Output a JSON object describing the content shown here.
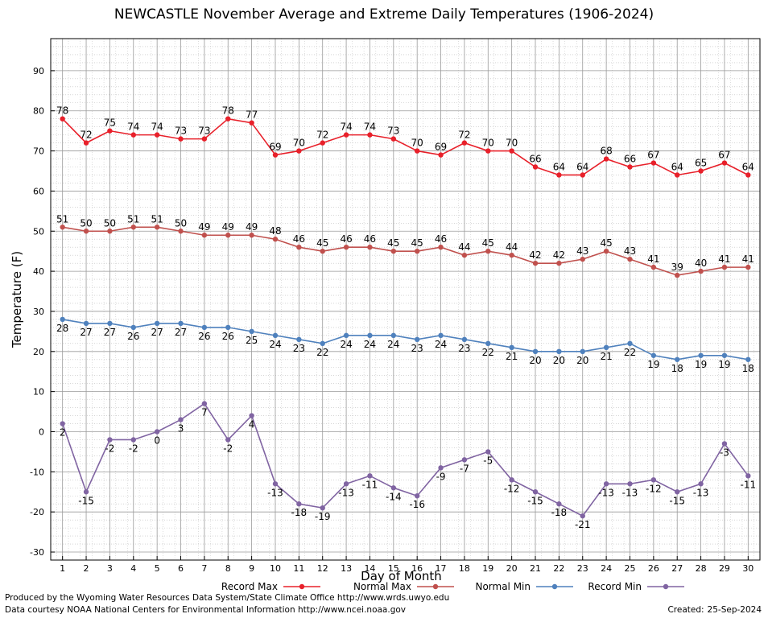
{
  "chart_data": {
    "type": "line",
    "title": "NEWCASTLE November Average and Extreme Daily Temperatures (1906-2024)",
    "xlabel": "Day of Month",
    "ylabel": "Temperature (F)",
    "x": [
      1,
      2,
      3,
      4,
      5,
      6,
      7,
      8,
      9,
      10,
      11,
      12,
      13,
      14,
      15,
      16,
      17,
      18,
      19,
      20,
      21,
      22,
      23,
      24,
      25,
      26,
      27,
      28,
      29,
      30
    ],
    "xlim": [
      0.5,
      30.5
    ],
    "ylim": [
      -32,
      98
    ],
    "yticks": [
      -30,
      -20,
      -10,
      0,
      10,
      20,
      30,
      40,
      50,
      60,
      70,
      80,
      90
    ],
    "grid": true,
    "legend_position": "bottom",
    "series": [
      {
        "name": "Record Max",
        "color": "#e8202a",
        "label_position": "above",
        "values": [
          78,
          72,
          75,
          74,
          74,
          73,
          73,
          78,
          77,
          69,
          70,
          72,
          74,
          74,
          73,
          70,
          69,
          72,
          70,
          70,
          66,
          64,
          64,
          68,
          66,
          67,
          64,
          65,
          67,
          64
        ]
      },
      {
        "name": "Normal Max",
        "color": "#c0504d",
        "label_position": "above",
        "values": [
          51,
          50,
          50,
          51,
          51,
          50,
          49,
          49,
          49,
          48,
          46,
          45,
          46,
          46,
          45,
          45,
          46,
          44,
          45,
          44,
          42,
          42,
          43,
          45,
          43,
          41,
          39,
          40,
          41,
          41
        ]
      },
      {
        "name": "Normal Min",
        "color": "#4f81bd",
        "label_position": "below",
        "values": [
          28,
          27,
          27,
          26,
          27,
          27,
          26,
          26,
          25,
          24,
          23,
          22,
          24,
          24,
          24,
          23,
          24,
          23,
          22,
          21,
          20,
          20,
          20,
          21,
          22,
          19,
          18,
          19,
          19,
          18
        ]
      },
      {
        "name": "Record Min",
        "color": "#8064a2",
        "label_position": "below",
        "values": [
          2,
          -15,
          -2,
          -2,
          0,
          3,
          7,
          -2,
          4,
          -13,
          -18,
          -19,
          -13,
          -11,
          -14,
          -16,
          -9,
          -7,
          -5,
          -12,
          -15,
          -18,
          -21,
          -13,
          -13,
          -12,
          -15,
          -13,
          -3,
          -11
        ]
      }
    ]
  },
  "footer": {
    "credit_line_1": "Produced by the Wyoming Water Resources Data System/State Climate Office http://www.wrds.uwyo.edu",
    "credit_line_2": "Data courtesy NOAA National Centers for Environmental Information http://www.ncei.noaa.gov",
    "created_label": "Created:",
    "created_date": "25-Sep-2024"
  }
}
